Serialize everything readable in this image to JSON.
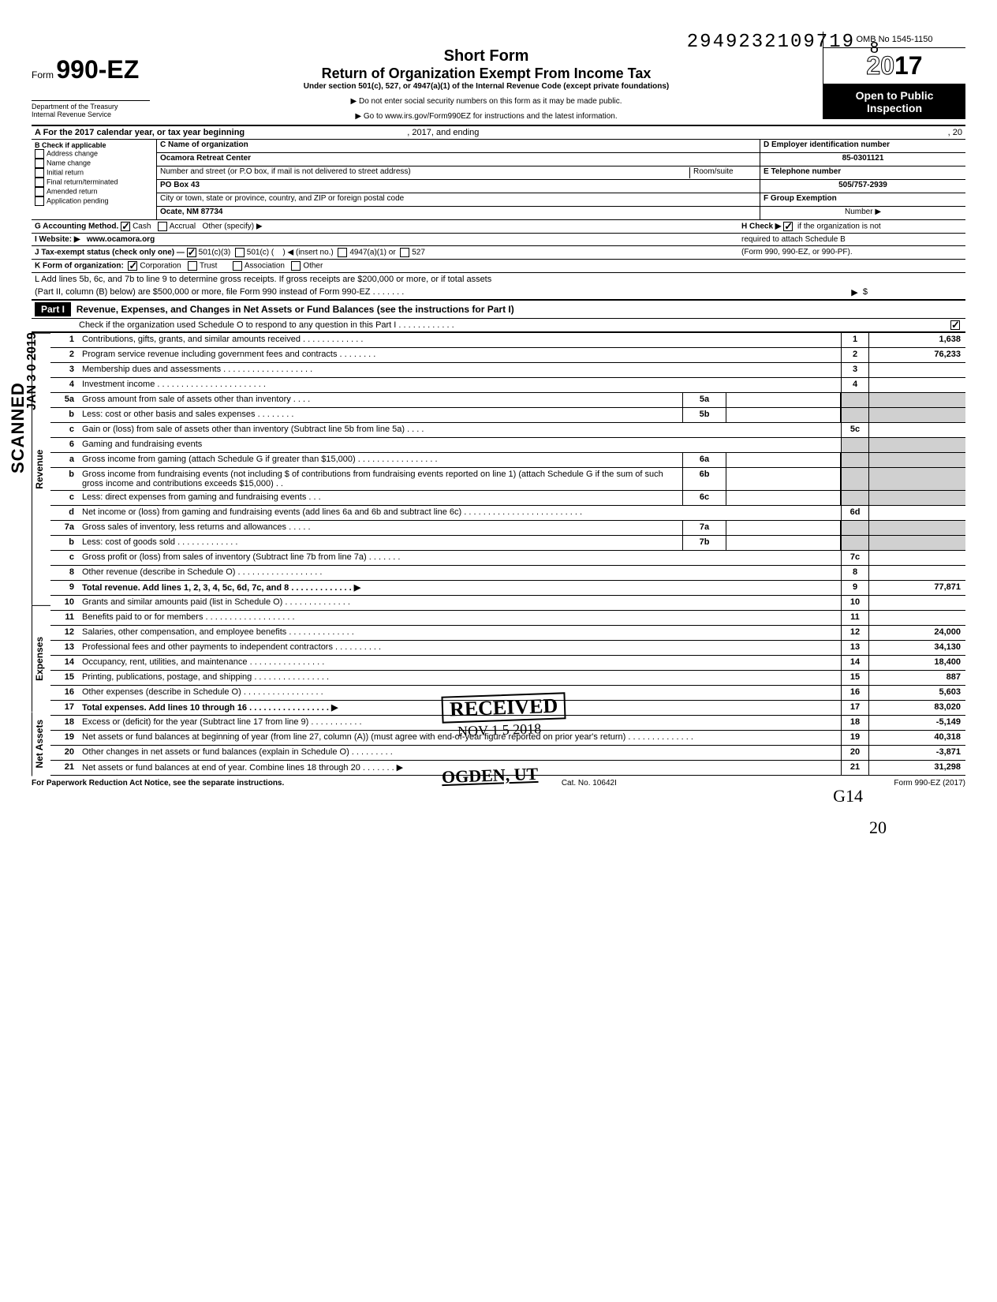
{
  "header": {
    "dln": "2949232109719",
    "dln_suffix": "8",
    "form_prefix": "Form",
    "form_number": "990-EZ",
    "dept1": "Department of the Treasury",
    "dept2": "Internal Revenue Service",
    "title_short": "Short Form",
    "title_main": "Return of Organization Exempt From Income Tax",
    "title_sub": "Under section 501(c), 527, or 4947(a)(1) of the Internal Revenue Code (except private foundations)",
    "note1": "▶ Do not enter social security numbers on this form as it may be made public.",
    "note2": "▶ Go to www.irs.gov/Form990EZ for instructions and the latest information.",
    "omb": "OMB No 1545-1150",
    "year_outline": "20",
    "year_bold": "17",
    "open_public": "Open to Public Inspection"
  },
  "rowA": {
    "label": "A  For the 2017 calendar year, or tax year beginning",
    "mid": ", 2017, and ending",
    "end": ", 20"
  },
  "sectionB": {
    "label": "B  Check if applicable",
    "items": [
      "Address change",
      "Name change",
      "Initial return",
      "Final return/terminated",
      "Amended return",
      "Application pending"
    ]
  },
  "sectionC": {
    "label": "C  Name of organization",
    "name": "Ocamora Retreat Center",
    "addr_label": "Number and street (or P.O  box, if mail is not delivered to street address)",
    "room_label": "Room/suite",
    "addr": "PO Box 43",
    "city_label": "City or town, state or province, country, and ZIP or foreign postal code",
    "city": "Ocate, NM 87734"
  },
  "sectionD": {
    "label": "D Employer identification number",
    "value": "85-0301121",
    "e_label": "E Telephone number",
    "e_value": "505/757-2939",
    "f_label": "F Group Exemption",
    "f_sub": "Number ▶"
  },
  "rowG": {
    "label": "G  Accounting Method.",
    "cash": "Cash",
    "accrual": "Accrual",
    "other": "Other (specify) ▶",
    "h": "H  Check ▶",
    "h2": "if the organization is not",
    "h3": "required to attach Schedule B",
    "h4": "(Form 990, 990-EZ, or 990-PF)."
  },
  "rowI": {
    "label": "I   Website: ▶",
    "value": "www.ocamora.org"
  },
  "rowJ": {
    "label": "J  Tax-exempt status (check only one) —",
    "o1": "501(c)(3)",
    "o2": "501(c) (",
    "o2b": ") ◀ (insert no.)",
    "o3": "4947(a)(1) or",
    "o4": "527"
  },
  "rowK": {
    "label": "K  Form of organization:",
    "o1": "Corporation",
    "o2": "Trust",
    "o3": "Association",
    "o4": "Other"
  },
  "rowL": {
    "text1": "L  Add lines 5b, 6c, and 7b to line 9 to determine gross receipts. If gross receipts are $200,000 or more, or if total assets",
    "text2": "(Part II, column (B) below) are $500,000 or more, file Form 990 instead of Form 990-EZ .  .  .  .  .  .  .",
    "arrow": "▶",
    "dollar": "$"
  },
  "part1": {
    "label": "Part I",
    "title": "Revenue, Expenses, and Changes in Net Assets or Fund Balances (see the instructions for Part I)",
    "check_o": "Check if the organization used Schedule O to respond to any question in this Part I .  .  .  .  .  .  .  .  .  .  .  ."
  },
  "sidebars": {
    "revenue": "Revenue",
    "expenses": "Expenses",
    "netassets": "Net Assets"
  },
  "lines": {
    "l1": {
      "n": "1",
      "d": "Contributions, gifts, grants, and similar amounts received .   .   .   .   .   .   .   .   .   .   .   .   .",
      "bn": "1",
      "v": "1,638"
    },
    "l2": {
      "n": "2",
      "d": "Program service revenue including government fees and contracts   .   .   .   .   .   .   .   .",
      "bn": "2",
      "v": "76,233"
    },
    "l3": {
      "n": "3",
      "d": "Membership dues and assessments .   .   .   .   .   .   .   .   .   .   .   .   .   .   .   .   .   .   .",
      "bn": "3",
      "v": ""
    },
    "l4": {
      "n": "4",
      "d": "Investment income   .   .   .   .   .   .   .   .   .   .   .   .   .   .   .   .   .   .   .   .   .   .   .",
      "bn": "4",
      "v": ""
    },
    "l5a": {
      "n": "5a",
      "d": "Gross amount from sale of assets other than inventory   .   .   .   .",
      "sb": "5a"
    },
    "l5b": {
      "n": "b",
      "d": "Less: cost or other basis and sales expenses .   .   .   .   .   .   .   .",
      "sb": "5b"
    },
    "l5c": {
      "n": "c",
      "d": "Gain or (loss) from sale of assets other than inventory (Subtract line 5b from line 5a) .   .   .   .",
      "bn": "5c",
      "v": ""
    },
    "l6": {
      "n": "6",
      "d": "Gaming and fundraising events"
    },
    "l6a": {
      "n": "a",
      "d": "Gross income from gaming (attach Schedule G if greater than $15,000) .   .   .   .   .   .   .   .   .   .   .   .   .   .   .   .   .",
      "sb": "6a"
    },
    "l6b": {
      "n": "b",
      "d": "Gross income from fundraising events (not including  $              of contributions from fundraising events reported on line 1) (attach Schedule G if the sum of such gross income and contributions exceeds $15,000) .   .",
      "sb": "6b"
    },
    "l6c": {
      "n": "c",
      "d": "Less: direct expenses from gaming and fundraising events   .   .   .",
      "sb": "6c"
    },
    "l6d": {
      "n": "d",
      "d": "Net income or (loss) from gaming and fundraising events (add lines 6a and 6b and subtract line 6c)   .   .   .   .   .   .   .   .   .   .   .   .   .   .   .   .   .   .   .   .   .   .   .   .   .",
      "bn": "6d",
      "v": ""
    },
    "l7a": {
      "n": "7a",
      "d": "Gross sales of inventory, less returns and allowances  .   .   .   .   .",
      "sb": "7a"
    },
    "l7b": {
      "n": "b",
      "d": "Less: cost of goods sold    .   .   .   .   .   .   .   .   .   .   .   .   .",
      "sb": "7b"
    },
    "l7c": {
      "n": "c",
      "d": "Gross profit or (loss) from sales of inventory (Subtract line 7b from line 7a)  .   .   .   .   .   .   .",
      "bn": "7c",
      "v": ""
    },
    "l8": {
      "n": "8",
      "d": "Other revenue (describe in Schedule O) .   .   .   .   .   .   .   .   .   .   .   .   .   .   .   .   .   .",
      "bn": "8",
      "v": ""
    },
    "l9": {
      "n": "9",
      "d": "Total revenue. Add lines 1, 2, 3, 4, 5c, 6d, 7c, and 8   .   .   .   .   .   .   .   .   .   .   .   .   .   ▶",
      "bn": "9",
      "v": "77,871",
      "bold": true
    },
    "l10": {
      "n": "10",
      "d": "Grants and similar amounts paid (list in Schedule O)  .   .   .   .   .   .   .   .   .   .   .   .   .   .",
      "bn": "10",
      "v": ""
    },
    "l11": {
      "n": "11",
      "d": "Benefits paid to or for members   .   .   .   .   .   .   .   .   .   .   .   .   .   .   .   .   .   .   .",
      "bn": "11",
      "v": ""
    },
    "l12": {
      "n": "12",
      "d": "Salaries, other compensation, and employee benefits  .   .   .   .   .   .   .   .   .   .   .   .   .   .",
      "bn": "12",
      "v": "24,000"
    },
    "l13": {
      "n": "13",
      "d": "Professional fees and other payments to independent contractors .   .   .   .   .   .   .   .   .   .",
      "bn": "13",
      "v": "34,130"
    },
    "l14": {
      "n": "14",
      "d": "Occupancy, rent, utilities, and maintenance   .   .   .   .   .   .   .   .   .   .   .   .   .   .   .   .",
      "bn": "14",
      "v": "18,400"
    },
    "l15": {
      "n": "15",
      "d": "Printing, publications, postage, and shipping .   .   .   .   .   .   .   .   .   .   .   .   .   .   .   .",
      "bn": "15",
      "v": "887"
    },
    "l16": {
      "n": "16",
      "d": "Other expenses (describe in Schedule O)  .   .   .   .   .   .   .   .   .   .   .   .   .   .   .   .   .",
      "bn": "16",
      "v": "5,603"
    },
    "l17": {
      "n": "17",
      "d": "Total expenses. Add lines 10 through 16 .   .   .   .   .   .   .   .   .   .   .   .   .   .   .   .   .   ▶",
      "bn": "17",
      "v": "83,020",
      "bold": true
    },
    "l18": {
      "n": "18",
      "d": "Excess or (deficit) for the year (Subtract line 17 from line 9)   .   .   .   .   .   .   .   .   .   .   .",
      "bn": "18",
      "v": "-5,149"
    },
    "l19": {
      "n": "19",
      "d": "Net assets or fund balances at beginning of year (from line 27, column (A)) (must agree with end-of-year figure reported on prior year's return)   .   .   .   .   .   .   .   .   .   .   .   .   .   .",
      "bn": "19",
      "v": "40,318"
    },
    "l20": {
      "n": "20",
      "d": "Other changes in net assets or fund balances (explain in Schedule O) .   .   .   .   .   .   .   .   .",
      "bn": "20",
      "v": "-3,871"
    },
    "l21": {
      "n": "21",
      "d": "Net assets or fund balances at end of year. Combine lines 18 through 20  .   .   .   .   .   .   .   ▶",
      "bn": "21",
      "v": "31,298"
    }
  },
  "footer": {
    "left": "For Paperwork Reduction Act Notice, see the separate instructions.",
    "mid": "Cat. No. 10642I",
    "right": "Form 990-EZ (2017)"
  },
  "stamps": {
    "scanned": "SCANNED",
    "scan_date": "JAN 3 0 2019",
    "received": "RECEIVED",
    "recv_date": "NOV 1 5 2018",
    "ogden": "OGDEN, UT",
    "hand1": "G14",
    "hand2": "20"
  }
}
